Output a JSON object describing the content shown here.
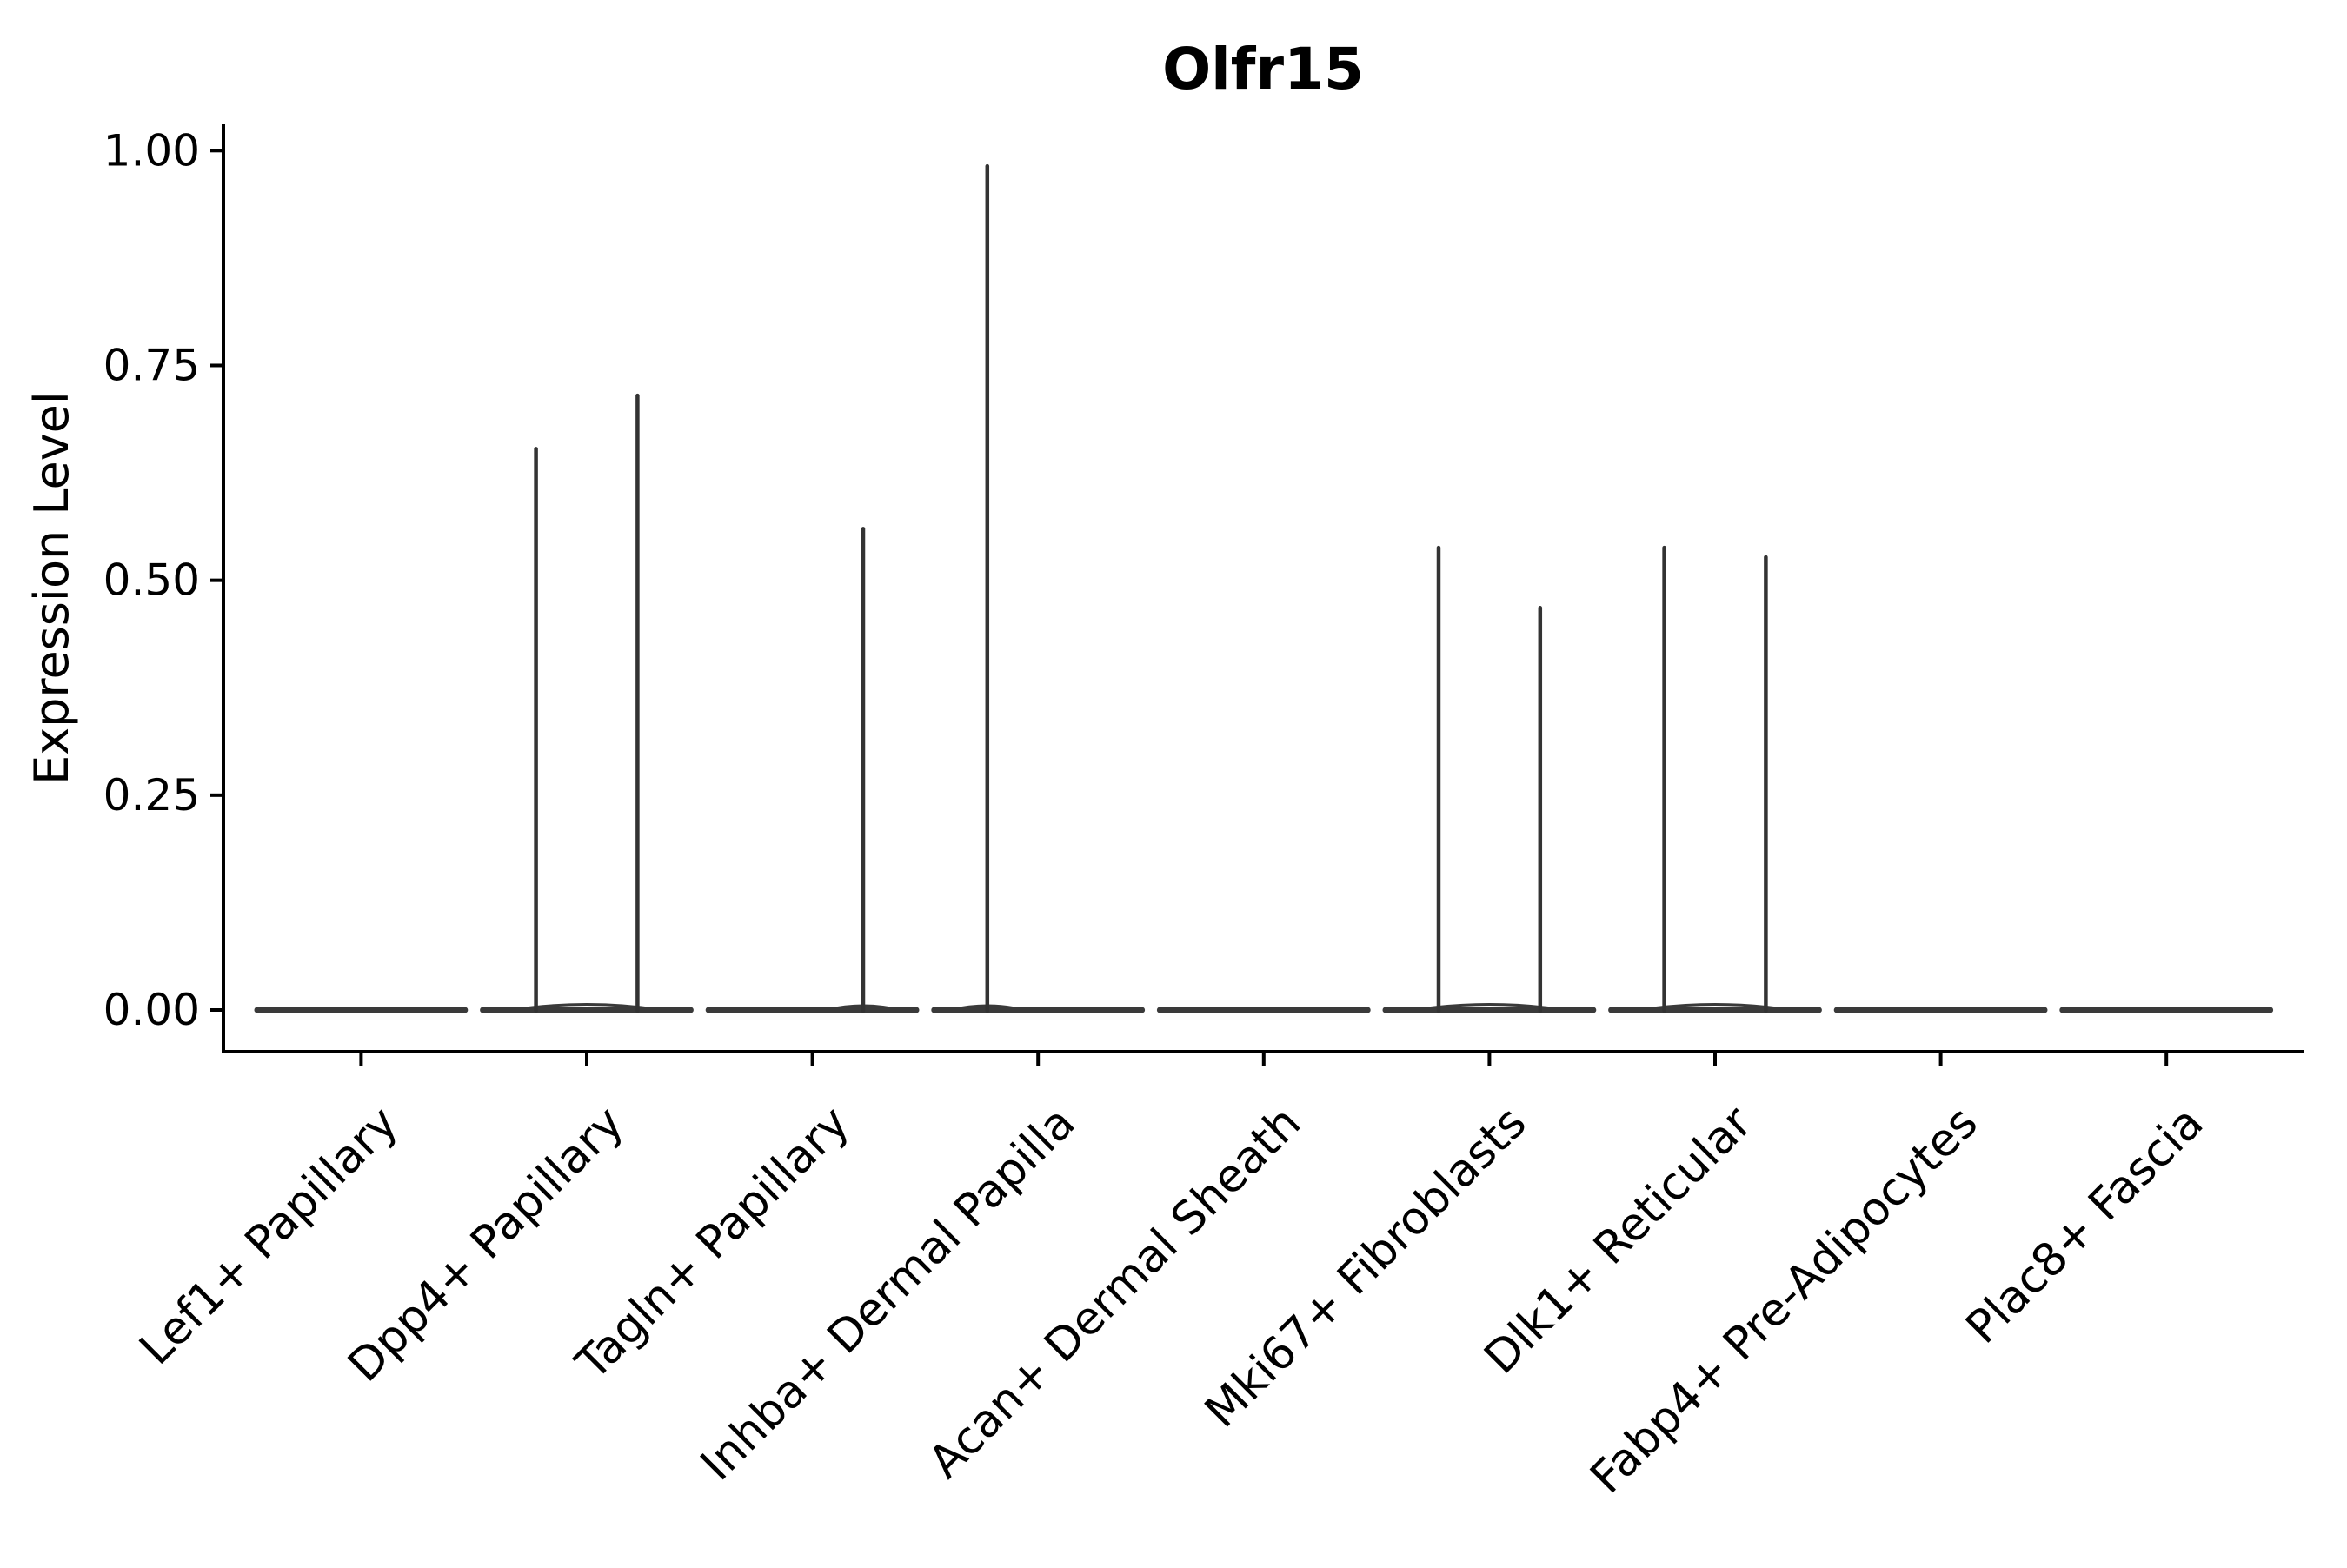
{
  "chart_data": {
    "type": "violin",
    "title": "Olfr15",
    "xlabel": "",
    "ylabel": "Expression Level",
    "background": "#ffffff",
    "grid": false,
    "legend": null,
    "colors": {
      "axis": "#000000",
      "text": "#000000",
      "violin_outline": "#3a3a3a",
      "spike": "#333333"
    },
    "y_axis": {
      "range": [
        -0.048,
        1.04
      ],
      "ticks": [
        {
          "value": 0.0,
          "label": "0.00"
        },
        {
          "value": 0.25,
          "label": "0.25"
        },
        {
          "value": 0.5,
          "label": "0.50"
        },
        {
          "value": 0.75,
          "label": "0.75"
        },
        {
          "value": 1.0,
          "label": "1.00"
        }
      ]
    },
    "categories": [
      "Lef1+ Papillary",
      "Dpp4+ Papillary",
      "Tagln+ Papillary",
      "Inhba+ Dermal Papilla",
      "Acan+ Dermal Sheath",
      "Mki67+ Fibroblasts",
      "Dlk1+ Reticular",
      "Fabp4+ Pre-Adipocytes",
      "Plac8+ Fascia"
    ],
    "violin_width_frac": 0.92,
    "violins": [
      {
        "category": "Lef1+ Papillary",
        "baseline_value": 0,
        "spikes": []
      },
      {
        "category": "Dpp4+ Papillary",
        "baseline_value": 0,
        "spikes": [
          {
            "dx_frac": -0.225,
            "value": 0.655
          },
          {
            "dx_frac": 0.225,
            "value": 0.717
          }
        ]
      },
      {
        "category": "Tagln+ Papillary",
        "baseline_value": 0,
        "spikes": [
          {
            "dx_frac": 0.225,
            "value": 0.562
          }
        ]
      },
      {
        "category": "Inhba+ Dermal Papilla",
        "baseline_value": 0,
        "spikes": [
          {
            "dx_frac": -0.225,
            "value": 0.984
          }
        ]
      },
      {
        "category": "Acan+ Dermal Sheath",
        "baseline_value": 0,
        "spikes": []
      },
      {
        "category": "Mki67+ Fibroblasts",
        "baseline_value": 0,
        "spikes": [
          {
            "dx_frac": -0.225,
            "value": 0.54
          },
          {
            "dx_frac": 0.225,
            "value": 0.47
          }
        ]
      },
      {
        "category": "Dlk1+ Reticular",
        "baseline_value": 0,
        "spikes": [
          {
            "dx_frac": -0.225,
            "value": 0.54
          },
          {
            "dx_frac": 0.225,
            "value": 0.529
          }
        ]
      },
      {
        "category": "Fabp4+ Pre-Adipocytes",
        "baseline_value": 0,
        "spikes": []
      },
      {
        "category": "Plac8+ Fascia",
        "baseline_value": 0,
        "spikes": []
      }
    ]
  }
}
